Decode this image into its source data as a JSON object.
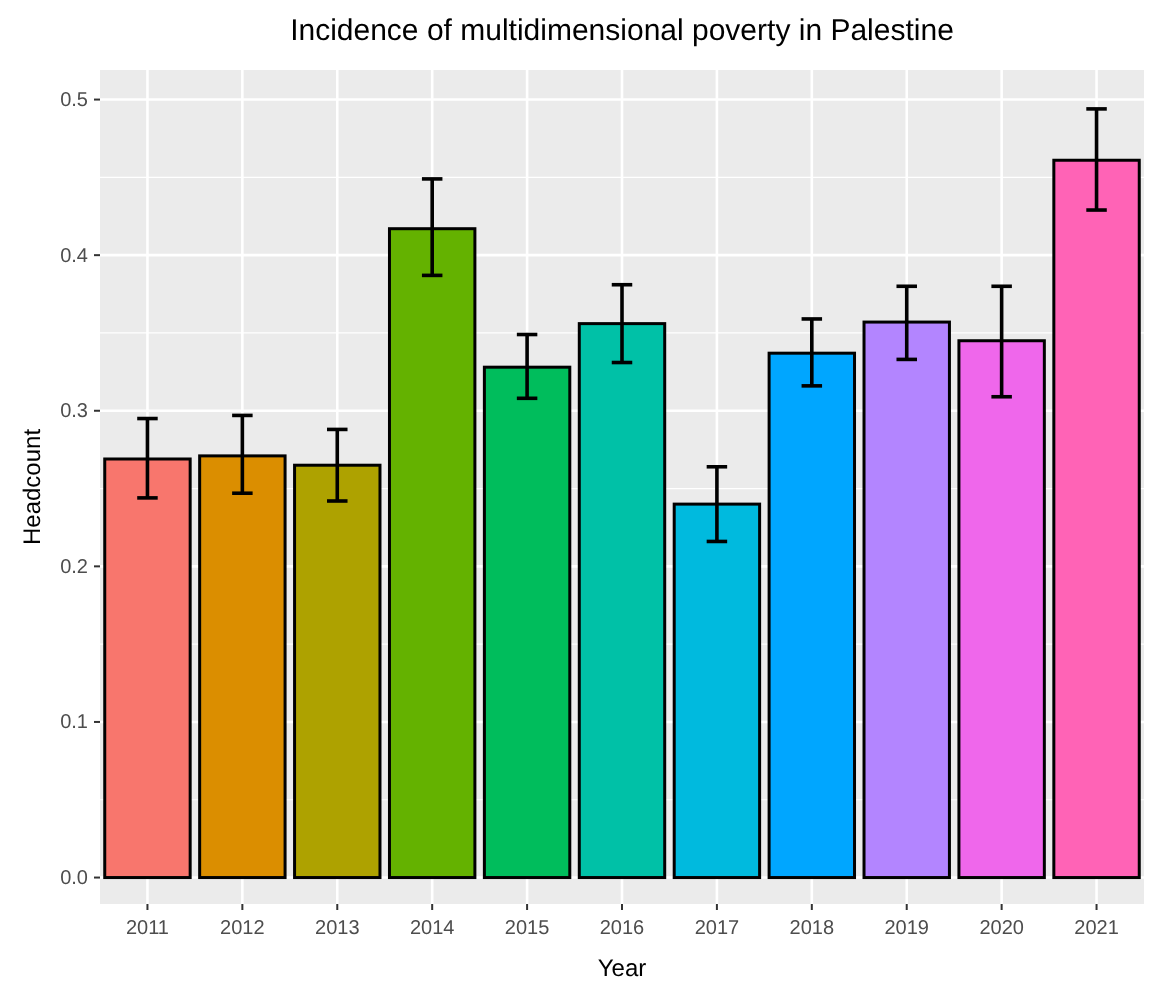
{
  "chart_data": {
    "type": "bar",
    "title": "Incidence of multidimensional poverty in Palestine",
    "xlabel": "Year",
    "ylabel": "Headcount",
    "categories": [
      "2011",
      "2012",
      "2013",
      "2014",
      "2015",
      "2016",
      "2017",
      "2018",
      "2019",
      "2020",
      "2021"
    ],
    "values": [
      0.269,
      0.271,
      0.265,
      0.417,
      0.328,
      0.356,
      0.24,
      0.337,
      0.357,
      0.345,
      0.461
    ],
    "colors": [
      "#f8766d",
      "#db8e00",
      "#aea200",
      "#64b200",
      "#00bd5c",
      "#00c1a7",
      "#00bade",
      "#00a6ff",
      "#b385ff",
      "#ef67eb",
      "#ff63b6"
    ],
    "errors": [
      [
        0.244,
        0.295
      ],
      [
        0.247,
        0.297
      ],
      [
        0.242,
        0.288
      ],
      [
        0.387,
        0.449
      ],
      [
        0.308,
        0.349
      ],
      [
        0.331,
        0.381
      ],
      [
        0.216,
        0.264
      ],
      [
        0.316,
        0.359
      ],
      [
        0.333,
        0.38
      ],
      [
        0.309,
        0.38
      ],
      [
        0.429,
        0.494
      ]
    ],
    "ylim": [
      -0.017,
      0.519
    ],
    "yticks": [
      {
        "value": 0,
        "label": "0.0"
      },
      {
        "value": 0.1,
        "label": "0.1"
      },
      {
        "value": 0.2,
        "label": "0.2"
      },
      {
        "value": 0.3,
        "label": "0.3"
      },
      {
        "value": 0.4,
        "label": "0.4"
      },
      {
        "value": 0.5,
        "label": "0.5"
      }
    ],
    "grid": true
  }
}
